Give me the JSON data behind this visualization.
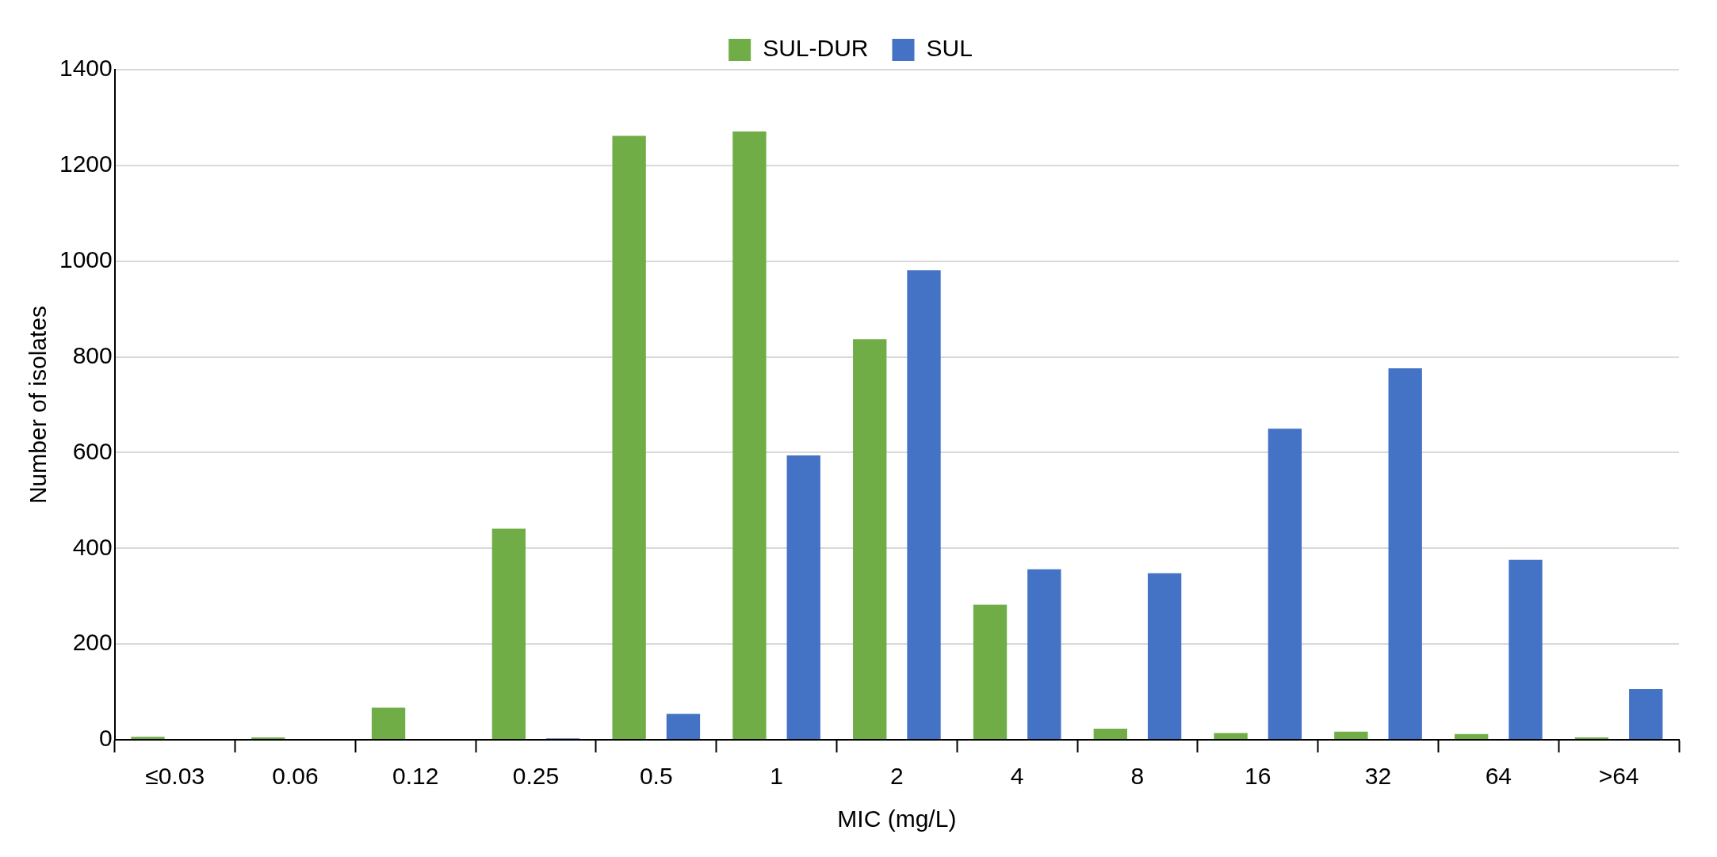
{
  "chart_data": {
    "type": "bar",
    "xlabel": "MIC (mg/L)",
    "ylabel": "Number of isolates",
    "categories": [
      "≤0.03",
      "0.06",
      "0.12",
      "0.25",
      "0.5",
      "1",
      "2",
      "4",
      "8",
      "16",
      "32",
      "64",
      ">64"
    ],
    "series": [
      {
        "name": "SUL-DUR",
        "color": "#70ad47",
        "values": [
          6,
          5,
          67,
          441,
          1262,
          1271,
          837,
          282,
          23,
          14,
          17,
          12,
          5
        ]
      },
      {
        "name": "SUL",
        "color": "#4472c4",
        "values": [
          0,
          0,
          0,
          3,
          54,
          594,
          981,
          356,
          348,
          650,
          776,
          376,
          106
        ]
      }
    ],
    "ylim": [
      0,
      1400
    ],
    "yticks": [
      0,
      200,
      400,
      600,
      800,
      1000,
      1200,
      1400
    ],
    "grid": "y",
    "legend": "top"
  }
}
